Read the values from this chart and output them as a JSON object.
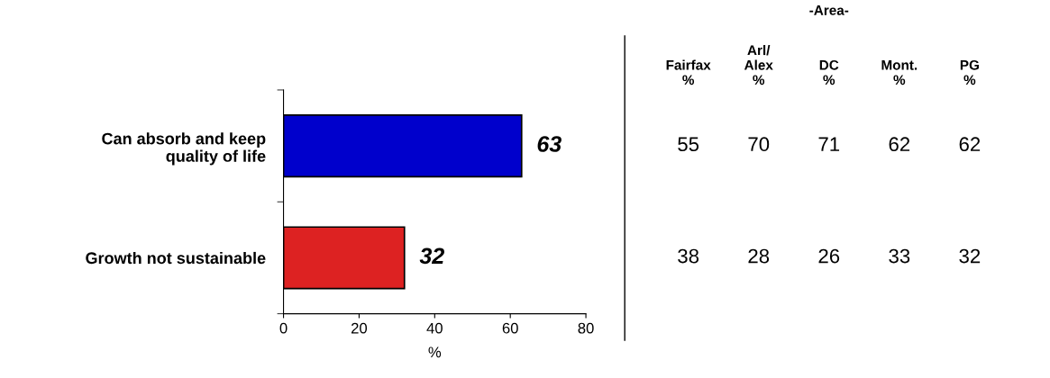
{
  "chart_data": [
    {
      "type": "bar",
      "orientation": "horizontal",
      "categories": [
        "Can absorb and keep\nquality of life",
        "Growth not sustainable"
      ],
      "values": [
        63,
        32
      ],
      "colors": [
        "#0000cc",
        "#dd2222"
      ],
      "xlim": [
        0,
        80
      ],
      "xticks": [
        0,
        20,
        40,
        60,
        80
      ],
      "xlabel": "%",
      "data_labels": true,
      "grid": false,
      "legend": false
    },
    {
      "type": "other",
      "title": "-Area-",
      "categories": [
        "Fairfax\n%",
        "Arl/\nAlex\n%",
        "DC\n%",
        "Mont.\n%",
        "PG\n%"
      ],
      "cell_labels": [
        [
          "55",
          "70",
          "71",
          "62",
          "62"
        ],
        [
          "38",
          "28",
          "26",
          "33",
          "32"
        ]
      ]
    }
  ]
}
